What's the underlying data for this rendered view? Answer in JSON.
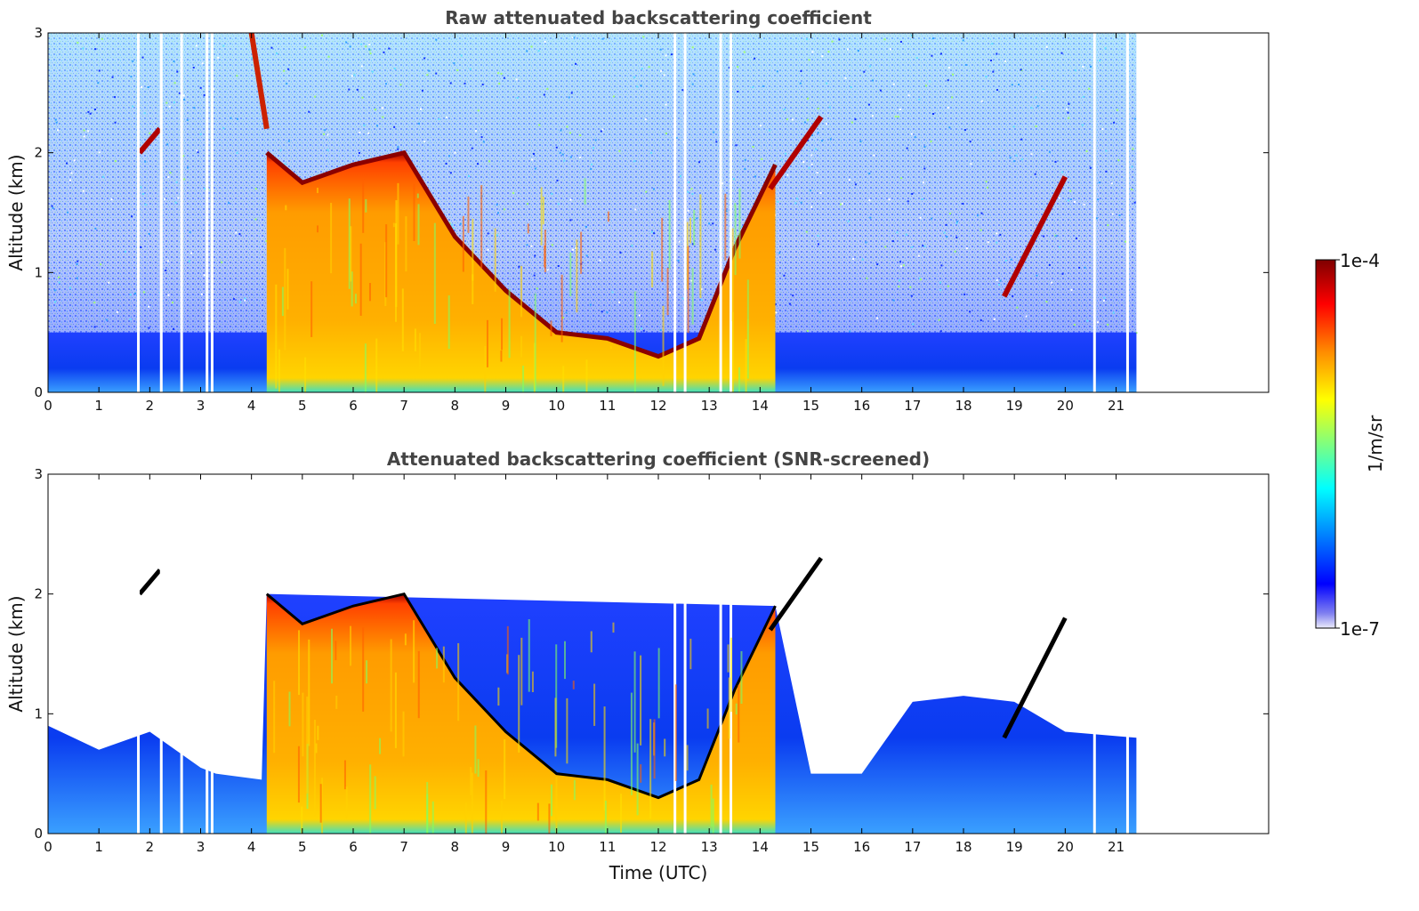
{
  "chart_data": [
    {
      "type": "heatmap",
      "title": "Raw attenuated backscattering coefficient",
      "xlabel": "",
      "ylabel": "Altitude (km)",
      "xlim": [
        0,
        24
      ],
      "ylim": [
        0,
        3
      ],
      "x_ticks": [
        "0",
        "1",
        "2",
        "3",
        "4",
        "5",
        "6",
        "7",
        "8",
        "9",
        "10",
        "11",
        "12",
        "13",
        "14",
        "15",
        "16",
        "17",
        "18",
        "19",
        "20",
        "21"
      ],
      "y_ticks": [
        "0",
        "1",
        "2",
        "3"
      ],
      "data_end_time": 21.4,
      "colorscale": "jet",
      "log_scale": true,
      "data_gaps_utc": [
        1.75,
        2.2,
        2.6,
        3.1,
        3.2,
        12.3,
        12.5,
        13.2,
        13.4,
        20.55,
        21.2
      ],
      "background_layer_top_km": 0.5,
      "aerosol_layer": {
        "x": [
          4.3,
          5,
          6,
          7,
          8,
          9,
          10,
          11,
          12,
          12.8,
          13.5,
          14.3
        ],
        "top_km": [
          2.0,
          1.75,
          1.9,
          2.0,
          1.3,
          0.85,
          0.5,
          0.45,
          0.3,
          0.45,
          1.2,
          1.9
        ]
      },
      "smoke_plume": {
        "x": [
          4.0,
          4.3
        ],
        "top_km": [
          3.0,
          2.2
        ]
      },
      "clouds": [
        {
          "x": [
            1.8,
            2.2
          ],
          "altitude_km": [
            2.0,
            2.2
          ]
        },
        {
          "x": [
            14.2,
            15.2
          ],
          "altitude_km": [
            1.7,
            2.3
          ]
        },
        {
          "x": [
            18.8,
            20.0
          ],
          "altitude_km": [
            0.8,
            1.8
          ]
        }
      ]
    },
    {
      "type": "heatmap",
      "title": "Attenuated backscattering coefficient (SNR-screened)",
      "xlabel": "Time (UTC)",
      "ylabel": "Altitude (km)",
      "xlim": [
        0,
        24
      ],
      "ylim": [
        0,
        3
      ],
      "x_ticks": [
        "0",
        "1",
        "2",
        "3",
        "4",
        "5",
        "6",
        "7",
        "8",
        "9",
        "10",
        "11",
        "12",
        "13",
        "14",
        "15",
        "16",
        "17",
        "18",
        "19",
        "20",
        "21"
      ],
      "y_ticks": [
        "0",
        "1",
        "2",
        "3"
      ],
      "data_end_time": 21.4,
      "colorscale": "jet",
      "log_scale": true,
      "screened_layer": {
        "x": [
          0,
          1,
          2,
          3,
          3.3,
          4.2,
          4.3,
          14.3,
          15.0,
          16.0,
          17.0,
          18.0,
          19.0,
          20.0,
          21.4
        ],
        "top_km": [
          0.9,
          0.7,
          0.85,
          0.55,
          0.5,
          0.45,
          2.0,
          1.9,
          0.5,
          0.5,
          1.1,
          1.15,
          1.1,
          0.85,
          0.8
        ]
      }
    }
  ],
  "colorbar": {
    "label": "1/m/sr",
    "max_label": "1e-4",
    "min_label": "1e-7",
    "colors": [
      "#7f0000",
      "#ff0000",
      "#ff7f00",
      "#ffff00",
      "#7fff7f",
      "#00ffff",
      "#007fff",
      "#0000ff",
      "#e0e0f8"
    ]
  }
}
